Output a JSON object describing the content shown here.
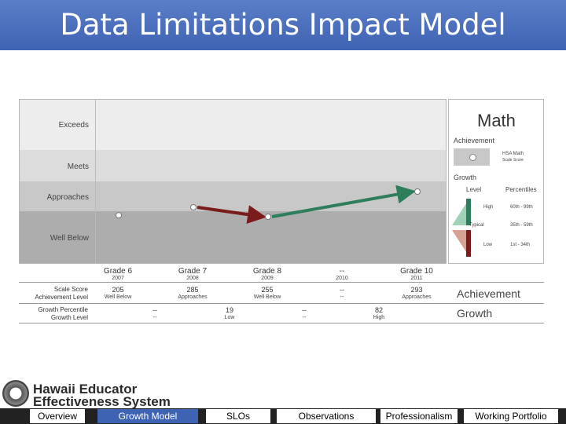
{
  "header": {
    "title": "Data Limitations Impact Model"
  },
  "chart": {
    "bands": [
      {
        "label": "Exceeds",
        "color": "#ededed"
      },
      {
        "label": "Meets",
        "color": "#dcdcdc"
      },
      {
        "label": "Approaches",
        "color": "#c8c8c8"
      },
      {
        "label": "Well Below",
        "color": "#adadad"
      }
    ],
    "grades": [
      {
        "label": "Grade 6",
        "year": "2007"
      },
      {
        "label": "Grade 7",
        "year": "2008"
      },
      {
        "label": "Grade 8",
        "year": "2009"
      },
      {
        "label": "--",
        "year": "2010"
      },
      {
        "label": "Grade 10",
        "year": "2011"
      }
    ]
  },
  "chart_data": {
    "type": "line",
    "x": [
      "Grade 6",
      "Grade 7",
      "Grade 8",
      "--",
      "Grade 10"
    ],
    "y": [
      205,
      285,
      255,
      null,
      293
    ],
    "colors": {
      "high_growth": "#2e7d5b",
      "low_growth": "#7b1c1c"
    }
  },
  "side_panel": {
    "title": "Math",
    "achievement": "Achievement",
    "legend_score": "HSA Math",
    "legend_score2": "Scale Score",
    "growth": "Growth",
    "level_header": "Level",
    "percentiles_header": "Percentiles",
    "levels": [
      {
        "name": "High",
        "range": "60th - 99th"
      },
      {
        "name": "Typical",
        "range": "35th - 59th"
      },
      {
        "name": "Low",
        "range": "1st - 34th"
      }
    ]
  },
  "table": {
    "score_label": "Scale Score",
    "ach_label": "Achievement Level",
    "pct_label": "Growth Percentile",
    "glevel_label": "Growth Level",
    "scores": [
      "205",
      "285",
      "255",
      "--",
      "293"
    ],
    "levels": [
      "Well Below",
      "Approaches",
      "Well Below",
      "--",
      "Approaches"
    ],
    "percentiles": [
      "--",
      "19",
      "--",
      "82"
    ],
    "glevels": [
      "--",
      "Low",
      "--",
      "High"
    ],
    "achievement_caption": "Achievement",
    "growth_caption": "Growth"
  },
  "logo": {
    "line1": "Hawaii Educator",
    "line2": "Effectiveness System"
  },
  "nav": [
    "Overview",
    "Growth Model",
    "SLOs",
    "Observations",
    "Professionalism",
    "Working Portfolio"
  ]
}
